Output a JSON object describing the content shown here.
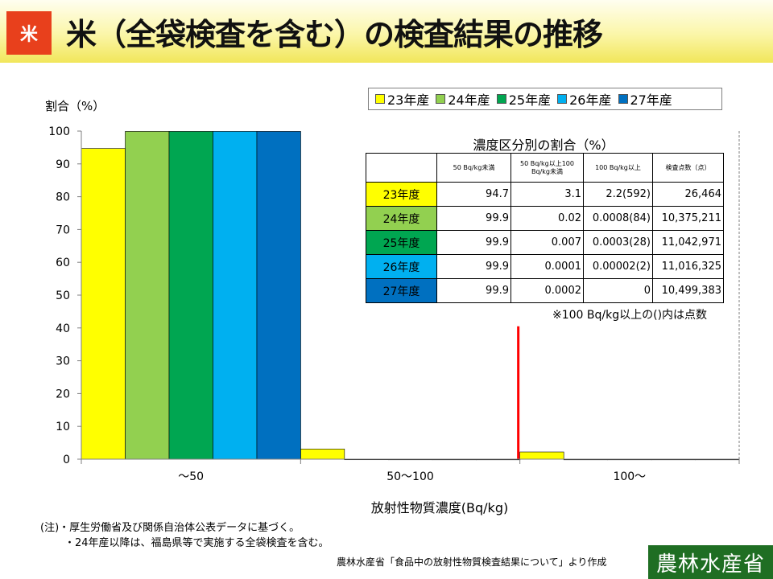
{
  "header": {
    "badge": "米",
    "title": "米（全袋検査を含む）の検査結果の推移"
  },
  "chart_data": {
    "type": "bar",
    "ylabel": "割合（%）",
    "xlabel": "放射性物質濃度(Bq/kg)",
    "categories": [
      "～50",
      "50～100",
      "100～"
    ],
    "ylim": [
      0,
      100
    ],
    "yticks": [
      0,
      10,
      20,
      30,
      40,
      50,
      60,
      70,
      80,
      90,
      100
    ],
    "legend_position": "top-right",
    "grid": false,
    "series": [
      {
        "name": "23年産",
        "color": "#ffff00",
        "values": [
          94.7,
          3.1,
          2.2
        ]
      },
      {
        "name": "24年産",
        "color": "#92d050",
        "values": [
          99.9,
          0.02,
          0.0008
        ]
      },
      {
        "name": "25年産",
        "color": "#00a651",
        "values": [
          99.9,
          0.007,
          0.0003
        ]
      },
      {
        "name": "26年産",
        "color": "#00b0f0",
        "values": [
          99.9,
          0.0001,
          2e-05
        ]
      },
      {
        "name": "27年産",
        "color": "#0070c0",
        "values": [
          99.9,
          0.0002,
          0
        ]
      }
    ],
    "reference_line": {
      "category_index": 2,
      "value": 40.5,
      "color": "#ff0000"
    }
  },
  "table": {
    "title": "濃度区分別の割合（%）",
    "headers": [
      "",
      "50 Bq/kg未満",
      "50 Bq/kg以上100 Bq/kg未満",
      "100 Bq/kg以上",
      "検査点数（点）"
    ],
    "rows": [
      {
        "year": "23年度",
        "color": "#ffff00",
        "c1": "94.7",
        "c2": "3.1",
        "c3": "2.2(592)",
        "count": "26,464"
      },
      {
        "year": "24年度",
        "color": "#92d050",
        "c1": "99.9",
        "c2": "0.02",
        "c3": "0.0008(84)",
        "count": "10,375,211"
      },
      {
        "year": "25年度",
        "color": "#00a651",
        "c1": "99.9",
        "c2": "0.007",
        "c3": "0.0003(28)",
        "count": "11,042,971"
      },
      {
        "year": "26年度",
        "color": "#00b0f0",
        "c1": "99.9",
        "c2": "0.0001",
        "c3": "0.00002(2)",
        "count": "11,016,325"
      },
      {
        "year": "27年度",
        "color": "#0070c0",
        "c1": "99.9",
        "c2": "0.0002",
        "c3": "0",
        "count": "10,499,383"
      }
    ],
    "note": "※100 Bq/kg以上の()内は点数"
  },
  "notes": {
    "line1": "(注)・厚生労働省及び関係自治体公表データに基づく。",
    "line2": "・24年産以降は、福島県等で実施する全袋検査を含む。"
  },
  "source": "農林水産省「食品中の放射性物質検査結果について」より作成",
  "ministry": "農林水産省"
}
